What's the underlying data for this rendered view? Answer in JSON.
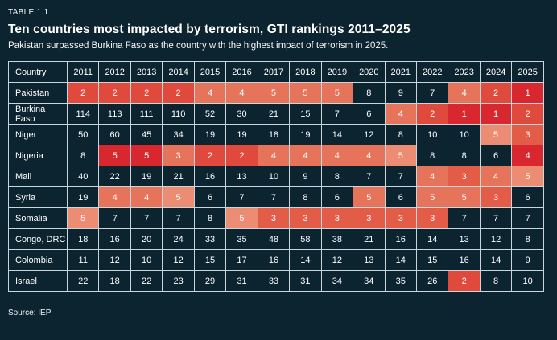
{
  "page": {
    "eyebrow": "TABLE 1.1",
    "title": "Ten countries most impacted by terrorism, GTI rankings 2011–2025",
    "subtitle": "Pakistan surpassed Burkina Faso as the country with the highest impact of terrorism in 2025.",
    "source": "Source: IEP",
    "background_color": "#0c2330",
    "border_color": "#c9d6db"
  },
  "palette": {
    "1": "#d92730",
    "2": "#e04a3c",
    "3": "#e25c48",
    "4": "#e6745b",
    "5": "#ec8d73",
    "note": "highlight level 1 = brightest red, 5 = light salmon, 0 = no highlight (dark background)"
  },
  "chart_data": {
    "type": "table",
    "title": "Ten countries most impacted by terrorism, GTI rankings 2011–2025",
    "columns": [
      "Country",
      "2011",
      "2012",
      "2013",
      "2014",
      "2015",
      "2016",
      "2017",
      "2018",
      "2019",
      "2020",
      "2021",
      "2022",
      "2023",
      "2024",
      "2025"
    ],
    "rows": [
      {
        "country": "Pakistan",
        "values": [
          2,
          2,
          2,
          2,
          4,
          4,
          5,
          5,
          5,
          8,
          9,
          7,
          4,
          2,
          1
        ],
        "highlight_levels": [
          2,
          2,
          2,
          2,
          4,
          4,
          4,
          4,
          4,
          0,
          0,
          0,
          4,
          2,
          1
        ]
      },
      {
        "country": "Burkina Faso",
        "values": [
          114,
          113,
          111,
          110,
          52,
          30,
          21,
          15,
          7,
          6,
          4,
          2,
          1,
          1,
          2
        ],
        "highlight_levels": [
          0,
          0,
          0,
          0,
          0,
          0,
          0,
          0,
          0,
          0,
          4,
          2,
          1,
          1,
          2
        ]
      },
      {
        "country": "Niger",
        "values": [
          50,
          60,
          45,
          34,
          19,
          19,
          18,
          19,
          14,
          12,
          8,
          10,
          10,
          5,
          3
        ],
        "highlight_levels": [
          0,
          0,
          0,
          0,
          0,
          0,
          0,
          0,
          0,
          0,
          0,
          0,
          0,
          5,
          3
        ]
      },
      {
        "country": "Nigeria",
        "values": [
          8,
          5,
          5,
          3,
          2,
          2,
          4,
          4,
          4,
          4,
          5,
          8,
          8,
          6,
          4
        ],
        "highlight_levels": [
          0,
          1,
          1,
          4,
          2,
          2,
          4,
          4,
          4,
          4,
          5,
          0,
          0,
          0,
          1
        ]
      },
      {
        "country": "Mali",
        "values": [
          40,
          22,
          19,
          21,
          16,
          13,
          10,
          9,
          8,
          7,
          7,
          4,
          3,
          4,
          5
        ],
        "highlight_levels": [
          0,
          0,
          0,
          0,
          0,
          0,
          0,
          0,
          0,
          0,
          0,
          4,
          3,
          4,
          5
        ]
      },
      {
        "country": "Syria",
        "values": [
          19,
          4,
          4,
          5,
          6,
          7,
          7,
          8,
          6,
          5,
          6,
          5,
          5,
          3,
          6
        ],
        "highlight_levels": [
          0,
          4,
          4,
          5,
          0,
          0,
          0,
          0,
          0,
          4,
          0,
          4,
          4,
          3,
          0
        ]
      },
      {
        "country": "Somalia",
        "values": [
          5,
          7,
          7,
          7,
          8,
          5,
          3,
          3,
          3,
          3,
          3,
          3,
          7,
          7,
          7
        ],
        "highlight_levels": [
          5,
          0,
          0,
          0,
          0,
          5,
          3,
          3,
          3,
          3,
          3,
          3,
          0,
          0,
          0
        ]
      },
      {
        "country": "Congo, DRC",
        "values": [
          18,
          16,
          20,
          24,
          33,
          35,
          48,
          58,
          38,
          21,
          16,
          14,
          13,
          12,
          8
        ],
        "highlight_levels": [
          0,
          0,
          0,
          0,
          0,
          0,
          0,
          0,
          0,
          0,
          0,
          0,
          0,
          0,
          0
        ]
      },
      {
        "country": "Colombia",
        "values": [
          11,
          12,
          10,
          12,
          15,
          17,
          16,
          14,
          12,
          13,
          14,
          15,
          16,
          14,
          9
        ],
        "highlight_levels": [
          0,
          0,
          0,
          0,
          0,
          0,
          0,
          0,
          0,
          0,
          0,
          0,
          0,
          0,
          0
        ]
      },
      {
        "country": "Israel",
        "values": [
          22,
          18,
          22,
          23,
          29,
          31,
          33,
          31,
          34,
          34,
          35,
          26,
          2,
          8,
          10
        ],
        "highlight_levels": [
          0,
          0,
          0,
          0,
          0,
          0,
          0,
          0,
          0,
          0,
          0,
          0,
          2,
          0,
          0
        ]
      }
    ],
    "legend_position": "none",
    "grid": true
  }
}
